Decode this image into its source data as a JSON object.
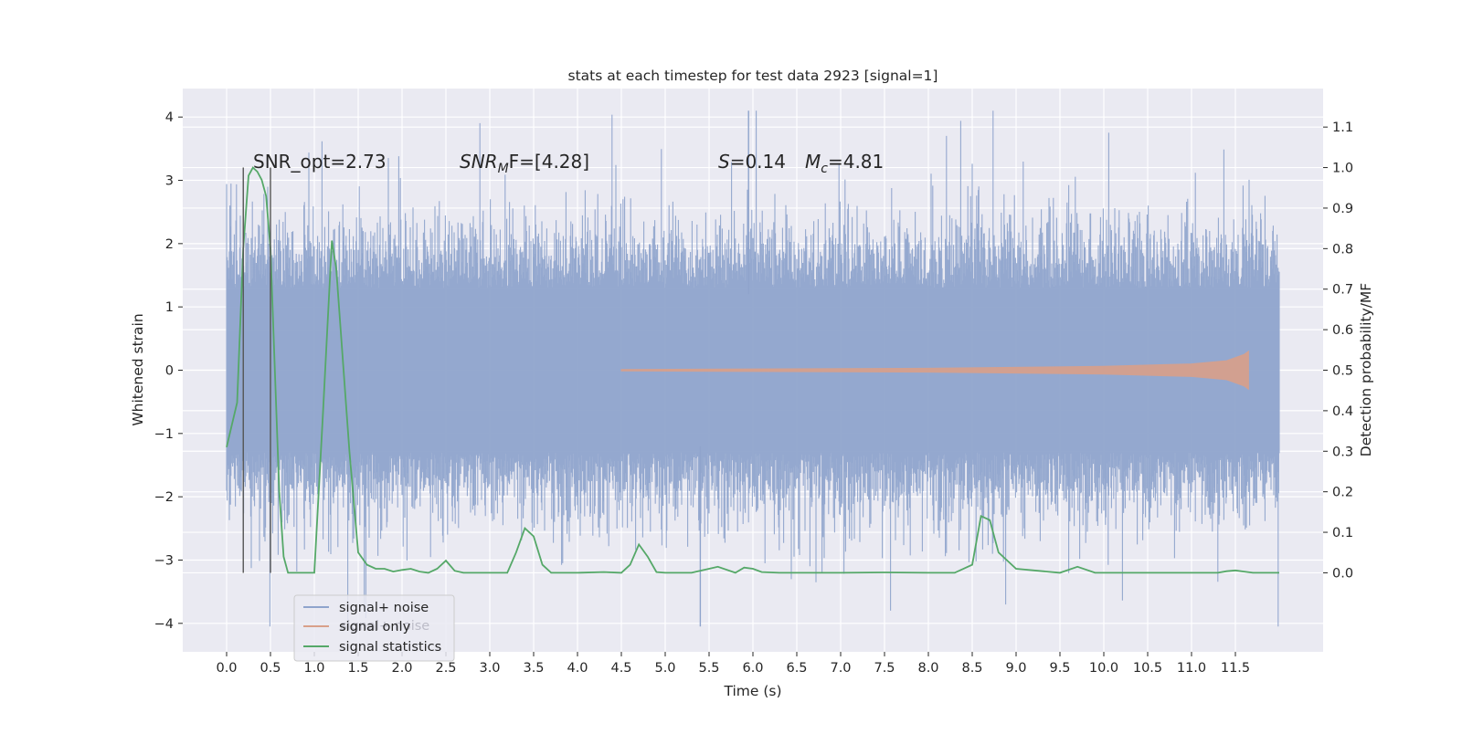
{
  "chart_data": {
    "type": "line",
    "title": "stats at each timestep for test data 2923 [signal=1]",
    "xlabel": "Time (s)",
    "ylabel": "Whitened strain",
    "y2label": "Detection probability/MF",
    "xlim": [
      -0.5,
      12.5
    ],
    "ylim": [
      -4.45,
      4.45
    ],
    "y2lim": [
      -0.195,
      1.195
    ],
    "x_ticks": [
      0.0,
      0.5,
      1.0,
      1.5,
      2.0,
      2.5,
      3.0,
      3.5,
      4.0,
      4.5,
      5.0,
      5.5,
      6.0,
      6.5,
      7.0,
      7.5,
      8.0,
      8.5,
      9.0,
      9.5,
      10.0,
      10.5,
      11.0,
      11.5
    ],
    "x_tick_labels": [
      "0.0",
      "0.5",
      "1.0",
      "1.5",
      "2.0",
      "2.5",
      "3.0",
      "3.5",
      "4.0",
      "4.5",
      "5.0",
      "5.5",
      "6.0",
      "6.5",
      "7.0",
      "7.5",
      "8.0",
      "8.5",
      "9.0",
      "9.5",
      "10.0",
      "10.5",
      "11.0",
      "11.5"
    ],
    "y_ticks": [
      -4,
      -3,
      -2,
      -1,
      0,
      1,
      2,
      3,
      4
    ],
    "y_tick_labels": [
      "−4",
      "−3",
      "−2",
      "−1",
      "0",
      "1",
      "2",
      "3",
      "4"
    ],
    "y2_ticks": [
      0.0,
      0.1,
      0.2,
      0.3,
      0.4,
      0.5,
      0.6,
      0.7,
      0.8,
      0.9,
      1.0,
      1.1
    ],
    "y2_tick_labels": [
      "0.0",
      "0.1",
      "0.2",
      "0.3",
      "0.4",
      "0.5",
      "0.6",
      "0.7",
      "0.8",
      "0.9",
      "1.0",
      "1.1"
    ],
    "grid": true,
    "legend_position": "lower-left",
    "annotations": [
      {
        "text": "SNR_opt=2.73",
        "x": 0.2,
        "y": 3.2
      },
      {
        "text_main": "SNR",
        "text_sub": "M",
        "text_rest": "F=[4.28]",
        "x": 2.6,
        "y": 3.2
      },
      {
        "text_main": "S",
        "text_rest": "=0.14",
        "x": 5.6,
        "y": 3.2
      },
      {
        "text_main": "M",
        "text_sub": "c",
        "text_rest": "=4.81",
        "x": 6.6,
        "y": 3.2
      }
    ],
    "vlines": [
      {
        "x": 0.19,
        "y2_from": 0.0,
        "y2_to": 1.0
      },
      {
        "x": 0.5,
        "y2_from": 0.0,
        "y2_to": 1.0
      }
    ],
    "series": [
      {
        "name": "signal+ noise",
        "color": "#8fa4cc",
        "kind": "noise",
        "x_range": [
          0.0,
          12.0
        ],
        "typical_amplitude": 1.3,
        "max": 4.1,
        "min": -4.05
      },
      {
        "name": "signal only",
        "color": "#d9a08a",
        "kind": "chirp",
        "x_range": [
          4.5,
          11.65
        ],
        "envelope": [
          [
            4.5,
            0.01
          ],
          [
            6.0,
            0.02
          ],
          [
            8.0,
            0.03
          ],
          [
            10.0,
            0.06
          ],
          [
            11.0,
            0.1
          ],
          [
            11.4,
            0.15
          ],
          [
            11.6,
            0.25
          ],
          [
            11.65,
            0.3
          ]
        ]
      },
      {
        "name": "signal statistics",
        "color": "#55a868",
        "axis": "right",
        "x": [
          0.0,
          0.12,
          0.19,
          0.25,
          0.3,
          0.35,
          0.4,
          0.45,
          0.5,
          0.55,
          0.6,
          0.65,
          0.7,
          0.8,
          1.0,
          1.1,
          1.2,
          1.25,
          1.3,
          1.4,
          1.5,
          1.6,
          1.7,
          1.8,
          1.9,
          2.0,
          2.1,
          2.2,
          2.3,
          2.4,
          2.5,
          2.6,
          2.7,
          3.0,
          3.2,
          3.3,
          3.4,
          3.5,
          3.6,
          3.7,
          4.0,
          4.3,
          4.5,
          4.6,
          4.7,
          4.8,
          4.9,
          5.0,
          5.3,
          5.5,
          5.6,
          5.8,
          5.9,
          6.0,
          6.1,
          6.3,
          6.5,
          7.0,
          7.5,
          8.0,
          8.3,
          8.5,
          8.6,
          8.7,
          8.8,
          9.0,
          9.5,
          9.7,
          9.9,
          10.0,
          10.5,
          11.0,
          11.3,
          11.4,
          11.5,
          11.6,
          11.7,
          12.0
        ],
        "values": [
          0.31,
          0.42,
          0.8,
          0.98,
          1.0,
          0.99,
          0.97,
          0.93,
          0.8,
          0.5,
          0.2,
          0.04,
          0.0,
          0.0,
          0.0,
          0.4,
          0.82,
          0.75,
          0.6,
          0.3,
          0.05,
          0.02,
          0.01,
          0.01,
          0.003,
          0.007,
          0.01,
          0.003,
          0.0,
          0.01,
          0.03,
          0.005,
          0.0,
          0.0,
          0.0,
          0.05,
          0.11,
          0.09,
          0.02,
          0.0,
          0.0,
          0.002,
          0.0,
          0.02,
          0.07,
          0.04,
          0.002,
          0.0,
          0.0,
          0.01,
          0.015,
          0.0,
          0.013,
          0.01,
          0.002,
          0.0,
          0.0,
          0.0,
          0.001,
          0.0,
          0.0,
          0.02,
          0.14,
          0.13,
          0.05,
          0.01,
          0.0,
          0.015,
          0.0,
          0.0,
          0.0,
          0.0,
          0.0,
          0.004,
          0.006,
          0.003,
          0.0,
          0.0
        ]
      }
    ],
    "ghost_text": "signal+ noise"
  }
}
